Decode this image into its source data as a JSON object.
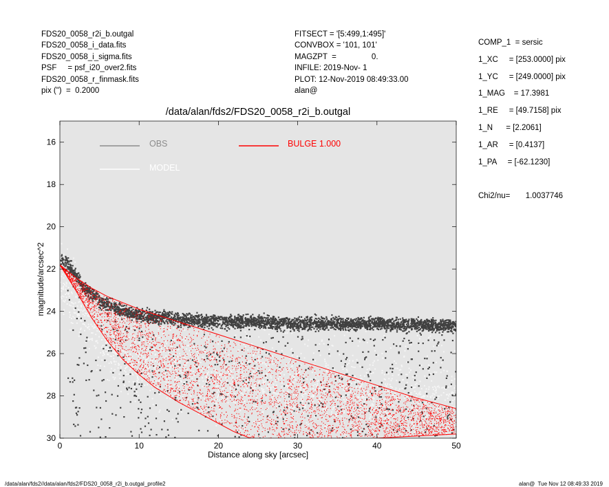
{
  "header_left": [
    "FDS20_0058_r2i_b.outgal",
    "FDS20_0058_i_data.fits",
    "FDS20_0058_i_sigma.fits",
    "PSF     = psf_i20_over2.fits",
    "FDS20_0058_r_finmask.fits",
    "pix (\")  =  0.2000"
  ],
  "header_mid": [
    "FITSECT = '[5:499,1:495]'",
    "CONVBOX = '101, 101'",
    "MAGZPT  =                0.",
    "INFILE: 2019-Nov- 1",
    "PLOT: 12-Nov-2019 08:49:33.00",
    "alan@"
  ],
  "side_params": [
    "COMP_1  = sersic",
    "1_XC     = [253.0000] pix",
    "1_YC     = [249.0000] pix",
    "1_MAG    = 17.3981",
    "1_RE     = [49.7158] pix",
    "1_N      = [2.2061]",
    "1_AR     = [0.4137]",
    "1_PA     = [-62.1230]"
  ],
  "chi2": "Chi2/nu=       1.0037746",
  "footer_left": "/data/alan/fds2//data/alan/fds2/FDS20_0058_r2i_b.outgal_profile2",
  "footer_right": "alan@  Tue Nov 12 08:49:33 2019",
  "chart_data": {
    "type": "scatter",
    "title": "/data/alan/fds2/FDS20_0058_r2i_b.outgal",
    "xlabel": "Distance along sky [arcsec]",
    "ylabel": "magnitude/arcsec^2",
    "xlim": [
      0,
      50
    ],
    "ylim": [
      30,
      15
    ],
    "y_inverted": true,
    "xticks": [
      0,
      10,
      20,
      30,
      40,
      50
    ],
    "yticks": [
      16,
      18,
      20,
      22,
      24,
      26,
      28,
      30
    ],
    "background": "#e5e5e5",
    "grid": false,
    "legend_position": "top-left",
    "legend": [
      {
        "label": "OBS",
        "color": "#8c8c8c"
      },
      {
        "label": "MODEL",
        "color": "#ffffff"
      },
      {
        "label": "BULGE  1.000",
        "color": "#ff0000"
      }
    ],
    "series": [
      {
        "name": "OBS",
        "color": "#404040",
        "point_style": "dots",
        "sample": {
          "x": [
            0.2,
            1,
            2,
            3,
            4,
            5,
            6,
            8,
            10,
            15,
            20,
            25,
            30,
            40,
            50
          ],
          "y": [
            21.5,
            21.8,
            22.3,
            22.9,
            23.2,
            23.5,
            23.7,
            24.0,
            24.2,
            24.4,
            24.5,
            24.5,
            24.6,
            24.6,
            24.7
          ]
        }
      },
      {
        "name": "MODEL",
        "color": "#f5f5f5",
        "point_style": "dots",
        "sample": {
          "x": [
            0.5,
            5,
            10,
            20,
            30,
            40,
            50
          ],
          "y": [
            22.6,
            25.8,
            27.2,
            28.2,
            28.6,
            28.9,
            29.2
          ]
        }
      },
      {
        "name": "BULGE  1.000",
        "color": "#ff0000",
        "point_style": "dots",
        "envelope_upper": {
          "x": [
            0,
            2,
            4,
            6,
            8,
            10,
            15,
            20,
            25,
            30,
            35,
            40,
            45,
            50
          ],
          "y": [
            21.8,
            22.4,
            22.9,
            23.3,
            23.6,
            23.9,
            24.5,
            25.1,
            25.7,
            26.3,
            26.9,
            27.5,
            28.1,
            28.6
          ]
        },
        "envelope_lower": {
          "x": [
            0,
            2,
            4,
            6,
            8,
            10,
            12,
            15,
            18,
            20,
            22,
            24
          ],
          "y": [
            21.8,
            23.0,
            24.3,
            25.4,
            26.3,
            27.0,
            27.6,
            28.3,
            28.9,
            29.3,
            29.7,
            30.0
          ]
        },
        "envelope_lower_tail": {
          "x": [
            24,
            30,
            35,
            40,
            45,
            50
          ],
          "y": [
            30.0,
            30.2,
            30.1,
            30.0,
            29.9,
            29.8
          ]
        }
      }
    ]
  }
}
